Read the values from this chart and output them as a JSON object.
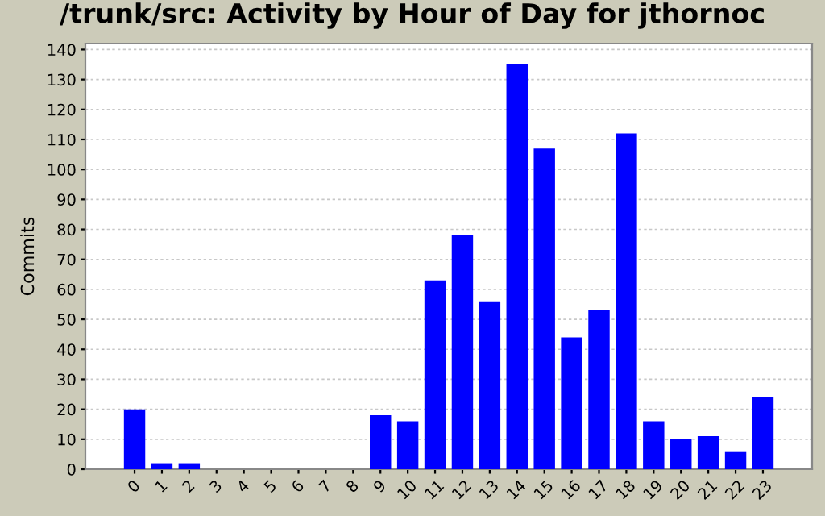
{
  "chart_data": {
    "type": "bar",
    "title": "/trunk/src: Activity by Hour of Day for jthornoc",
    "ylabel": "Commits",
    "categories": [
      "0",
      "1",
      "2",
      "3",
      "4",
      "5",
      "6",
      "7",
      "8",
      "9",
      "10",
      "11",
      "12",
      "13",
      "14",
      "15",
      "16",
      "17",
      "18",
      "19",
      "20",
      "21",
      "22",
      "23"
    ],
    "values": [
      20,
      2,
      2,
      0,
      0,
      0,
      0,
      0,
      0,
      18,
      16,
      63,
      78,
      56,
      135,
      107,
      44,
      53,
      112,
      16,
      10,
      11,
      6,
      24
    ],
    "color": "#0000ff",
    "ylim": [
      0,
      142
    ],
    "yticks": [
      0,
      10,
      20,
      30,
      40,
      50,
      60,
      70,
      80,
      90,
      100,
      110,
      120,
      130,
      140
    ],
    "grid": "y"
  }
}
